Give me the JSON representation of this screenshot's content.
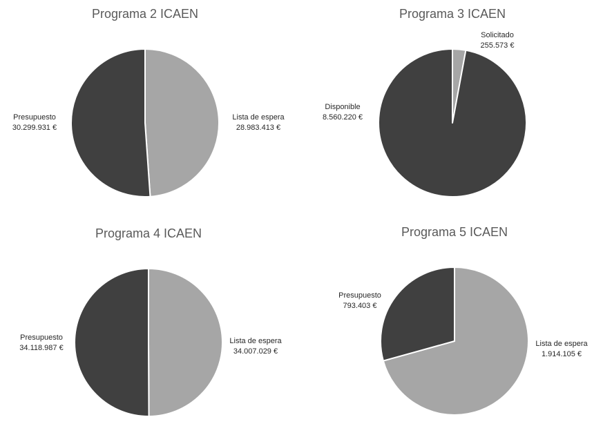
{
  "colors": {
    "dark": "#404040",
    "light": "#a6a6a6",
    "edge": "#ffffff"
  },
  "chart_data": [
    {
      "type": "pie",
      "title": "Programa 2 ICAEN",
      "slices": [
        {
          "name": "Lista de espera",
          "value": 28983413,
          "label": "28.983.413 €",
          "color": "light"
        },
        {
          "name": "Presupuesto",
          "value": 30299931,
          "label": "30.299.931 €",
          "color": "dark"
        }
      ]
    },
    {
      "type": "pie",
      "title": "Programa 3 ICAEN",
      "slices": [
        {
          "name": "Solicitado",
          "value": 255573,
          "label": "255.573 €",
          "color": "light"
        },
        {
          "name": "Disponible",
          "value": 8560220,
          "label": "8.560.220 €",
          "color": "dark"
        }
      ]
    },
    {
      "type": "pie",
      "title": "Programa 4 ICAEN",
      "slices": [
        {
          "name": "Lista de espera",
          "value": 34007029,
          "label": "34.007.029 €",
          "color": "light"
        },
        {
          "name": "Presupuesto",
          "value": 34118987,
          "label": "34.118.987 €",
          "color": "dark"
        }
      ]
    },
    {
      "type": "pie",
      "title": "Programa 5 ICAEN",
      "slices": [
        {
          "name": "Lista de espera",
          "value": 1914105,
          "label": "1.914.105 €",
          "color": "light"
        },
        {
          "name": "Presupuesto",
          "value": 793403,
          "label": "793.403 €",
          "color": "dark"
        }
      ]
    }
  ]
}
